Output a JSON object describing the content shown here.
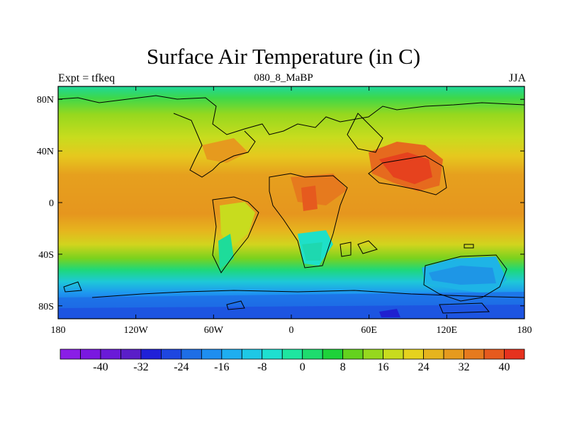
{
  "title": "Surface Air Temperature (in C)",
  "left_label": "Expt = tfkeq",
  "center_label": "080_8_MaBP",
  "right_label": "JJA",
  "lat_labels": [
    "80N",
    "40N",
    "0",
    "40S",
    "80S"
  ],
  "lon_labels": [
    "180",
    "120W",
    "60W",
    "0",
    "60E",
    "120E",
    "180"
  ],
  "colorbar": {
    "labels": [
      "-40",
      "-32",
      "-24",
      "-16",
      "-8",
      "0",
      "8",
      "16",
      "24",
      "32",
      "40"
    ],
    "colors": [
      "#8a1ee6",
      "#7a18e0",
      "#6a1ad8",
      "#5a1ec8",
      "#2020d8",
      "#1e46e0",
      "#1e6ee6",
      "#1e8ef0",
      "#1eaef0",
      "#1ec8e6",
      "#1ee0d0",
      "#1ee6a0",
      "#1edc6e",
      "#1ed23a",
      "#64d21e",
      "#96d81e",
      "#c8dc1e",
      "#e6d21e",
      "#e6b41e",
      "#e69a1e",
      "#e67a1e",
      "#e65a1e",
      "#e6321e"
    ]
  }
}
